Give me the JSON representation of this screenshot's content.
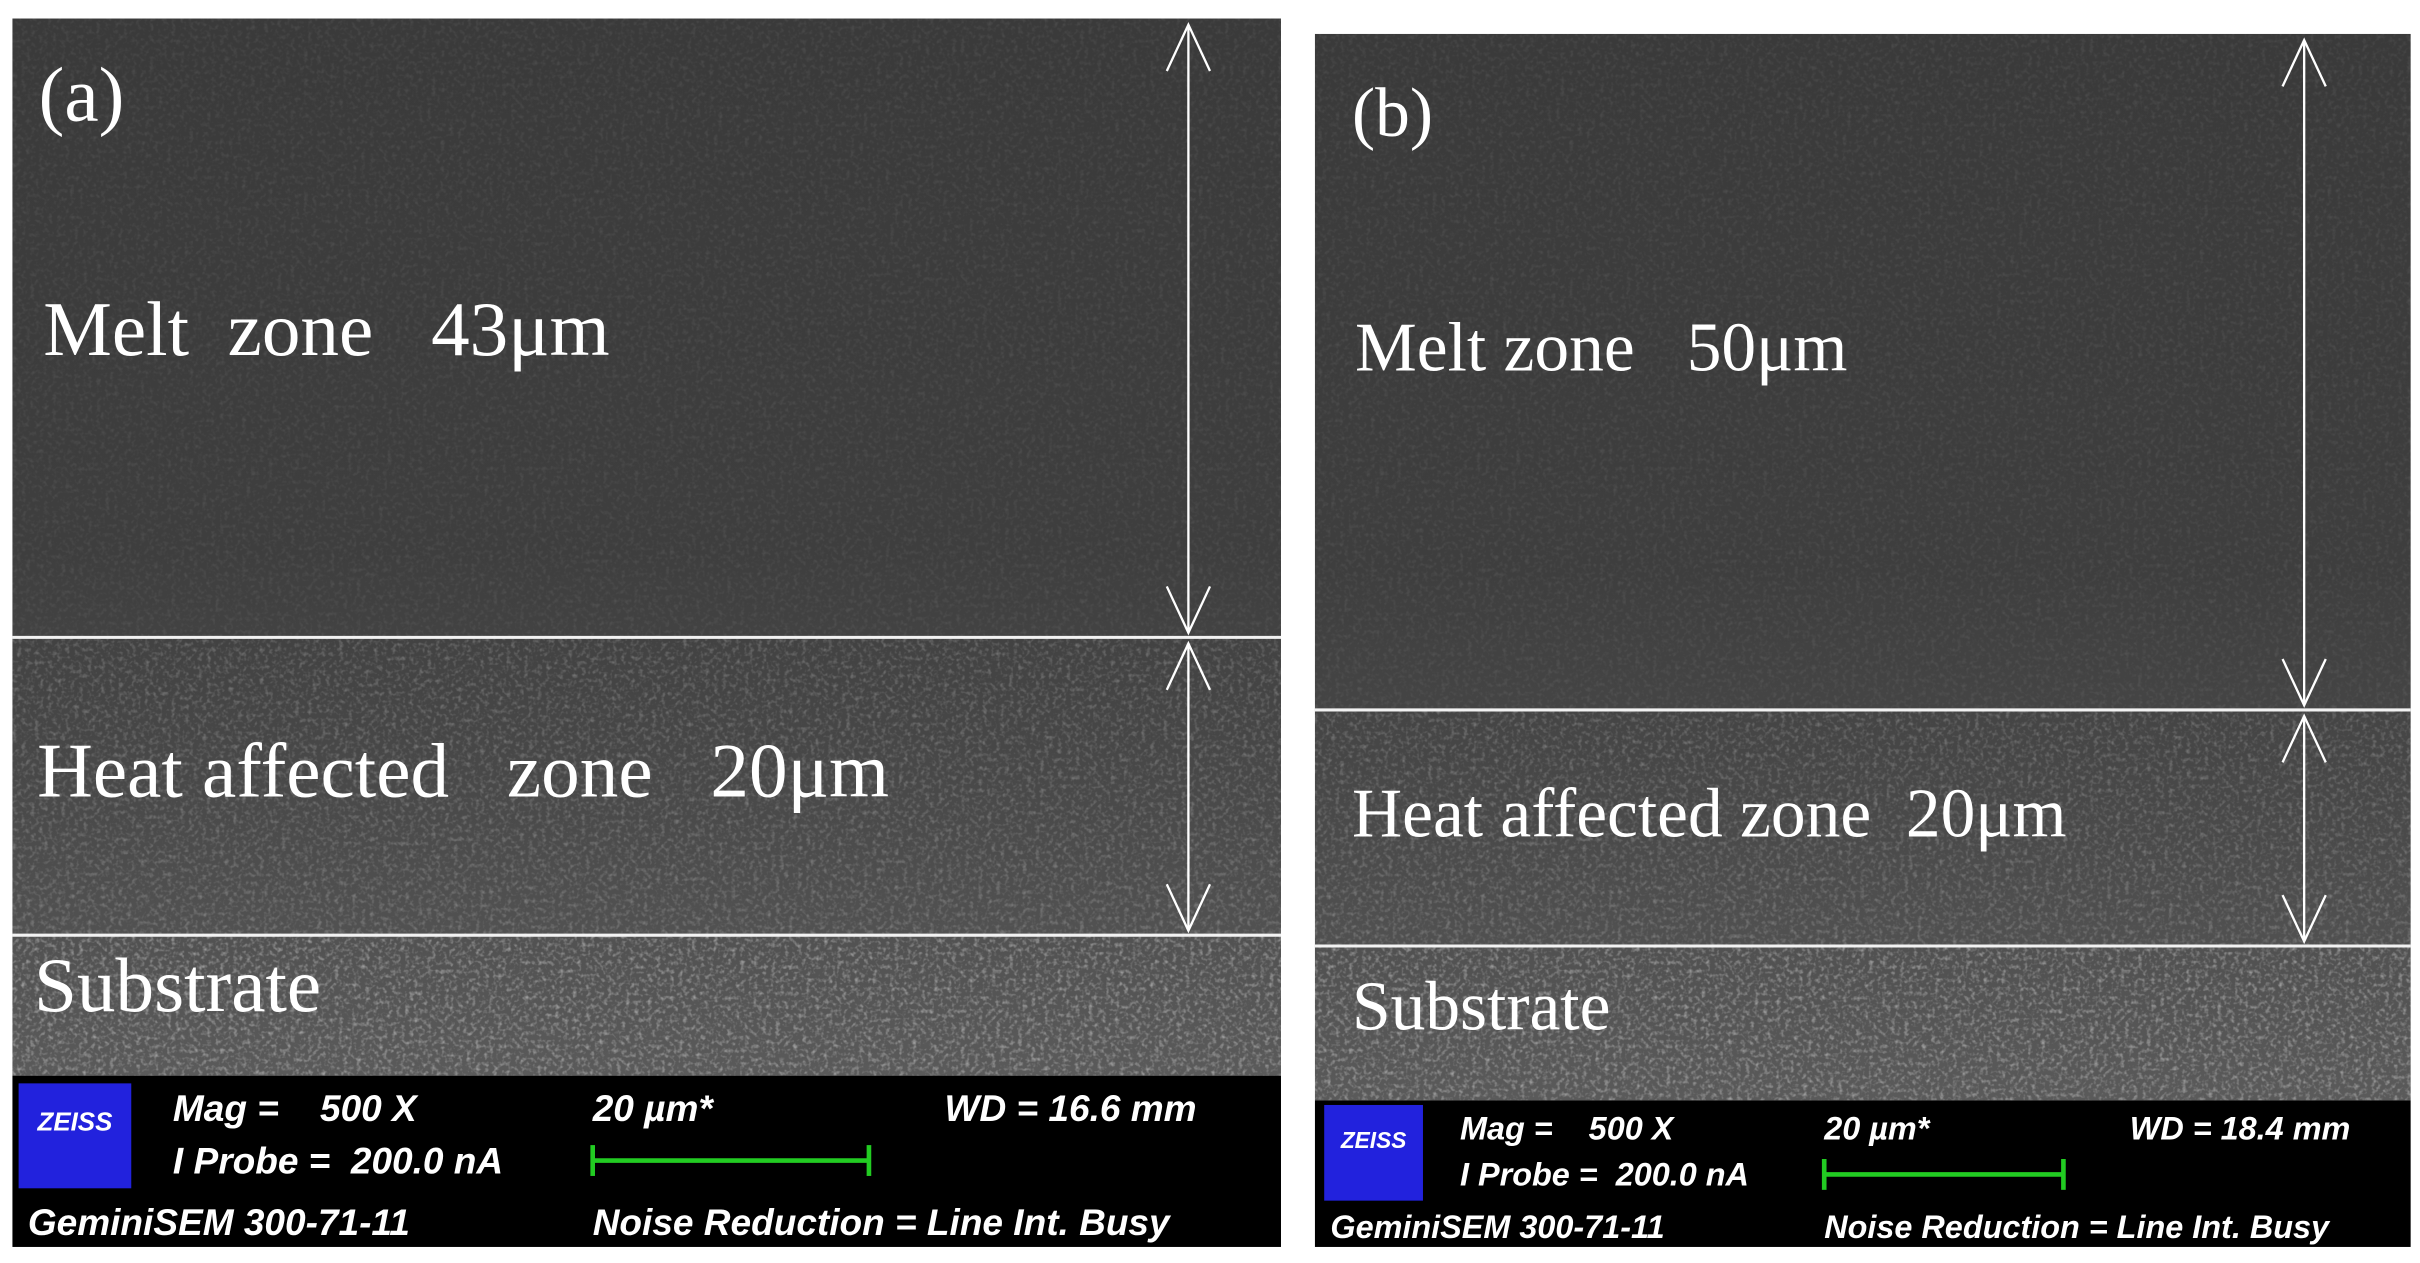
{
  "panels": [
    {
      "label": "(a)",
      "melt_zone": "Melt  zone   43μm",
      "heat_affected_zone": "Heat affected   zone   20μm",
      "substrate": "Substrate",
      "info_bar": {
        "brand": "ZEISS",
        "mag": "Mag =    500 X",
        "probe": "I Probe =  200.0 nA",
        "scale": "20 µm*",
        "wd": "WD = 16.6 mm",
        "instrument": "GeminiSEM 300-71-11",
        "noise": "Noise Reduction = Line Int. Busy"
      }
    },
    {
      "label": "(b)",
      "melt_zone": "Melt zone   50μm",
      "heat_affected_zone": "Heat affected zone  20μm",
      "substrate": "Substrate",
      "info_bar": {
        "brand": "ZEISS",
        "mag": "Mag =    500 X",
        "probe": "I Probe =  200.0 nA",
        "scale": "20 µm*",
        "wd": "WD = 18.4 mm",
        "instrument": "GeminiSEM 300-71-11",
        "noise": "Noise Reduction = Line Int. Busy"
      }
    }
  ]
}
